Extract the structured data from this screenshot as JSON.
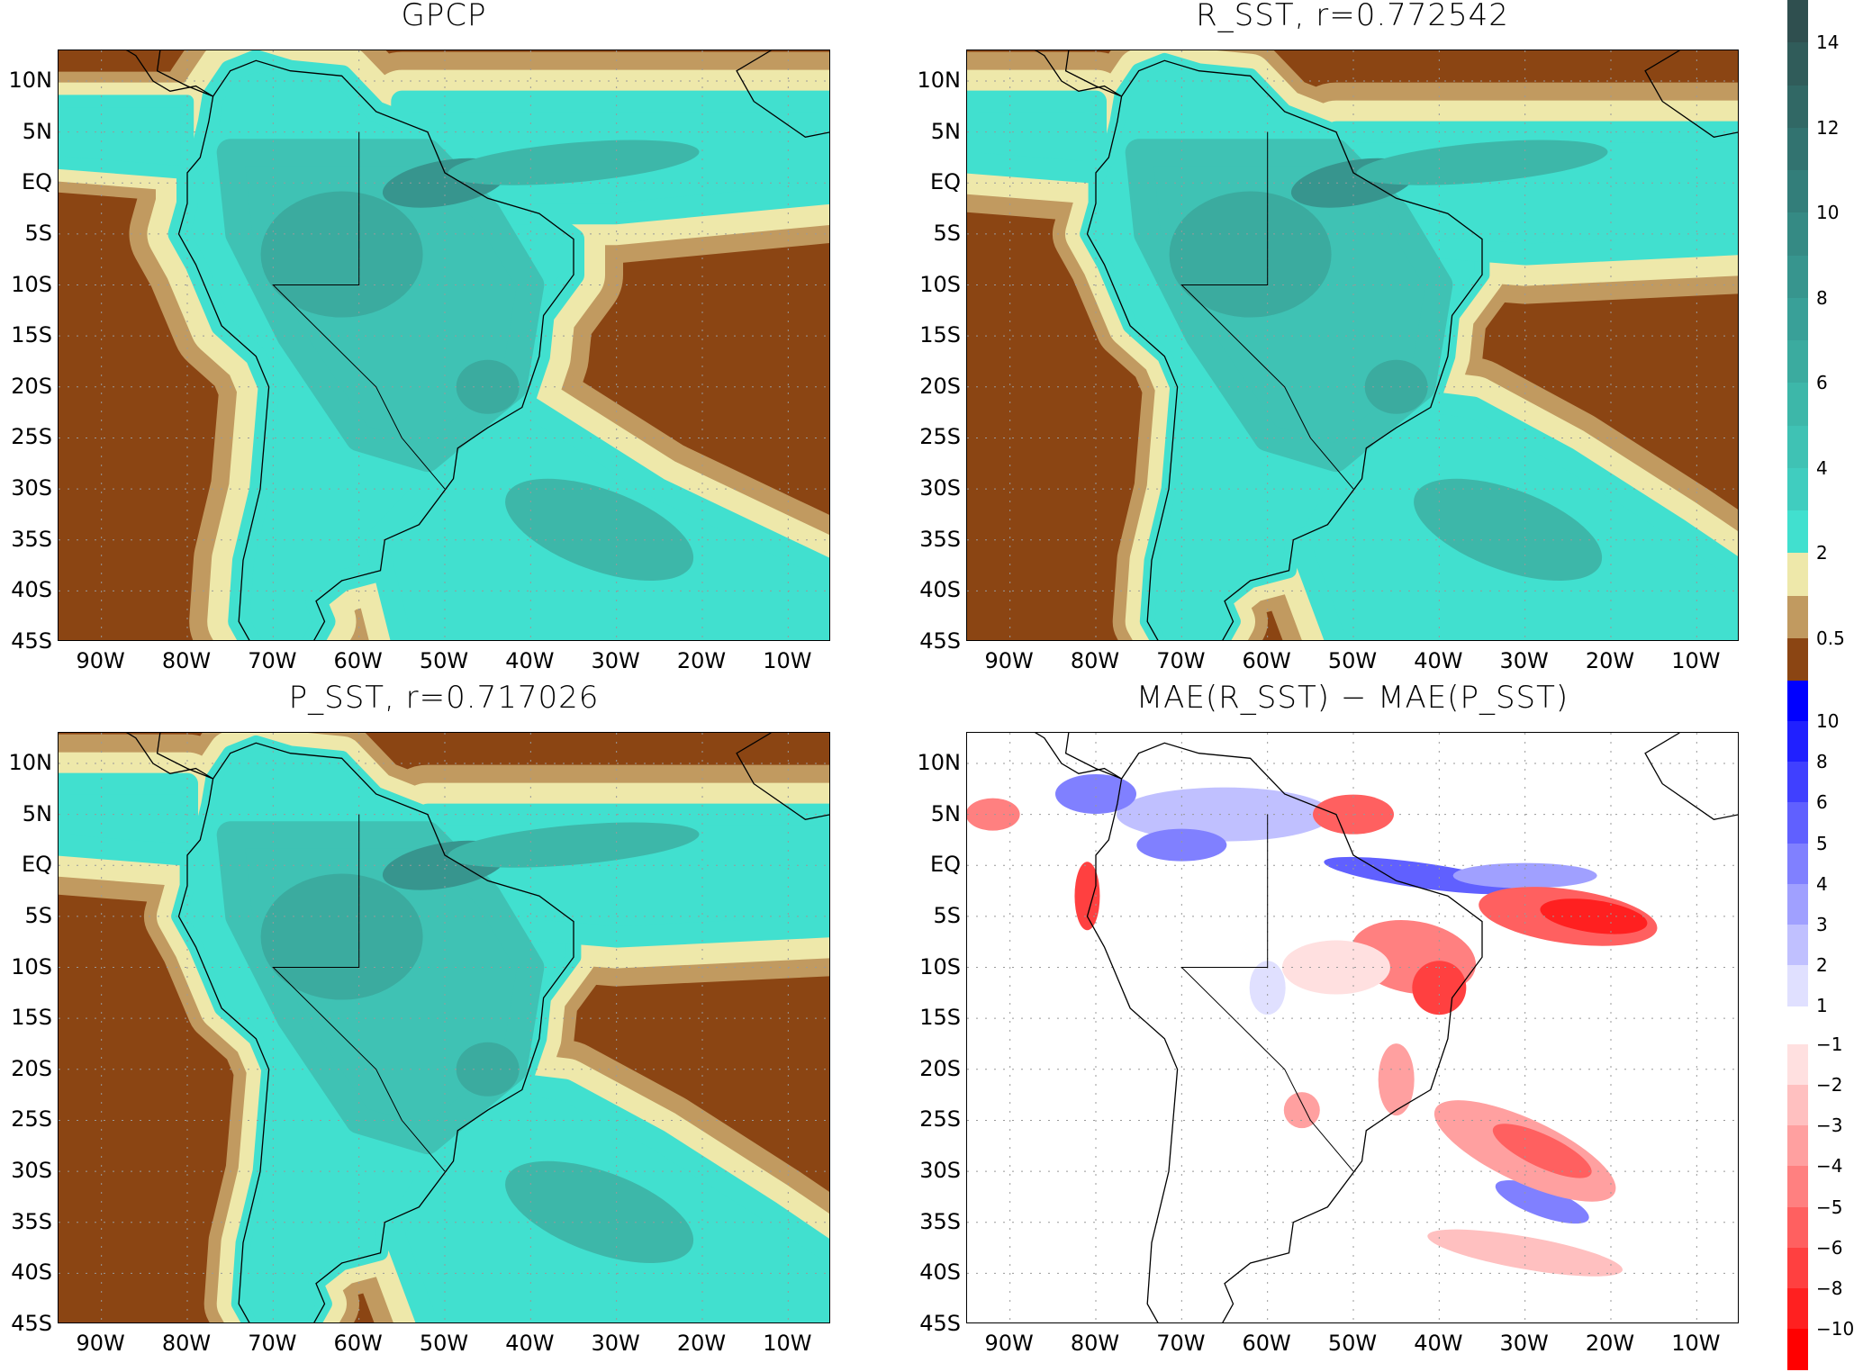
{
  "panels": [
    {
      "id": "gpcp",
      "title": "GPCP"
    },
    {
      "id": "r_sst",
      "title": "R_SST,  r=0.772542"
    },
    {
      "id": "p_sst",
      "title": "P_SST,  r=0.717026"
    },
    {
      "id": "mae_diff",
      "title": "MAE(R_SST) − MAE(P_SST)"
    }
  ],
  "axes": {
    "lon_range": [
      "95W",
      "5W"
    ],
    "lat_range": [
      "45S",
      "13N"
    ],
    "x_ticks": [
      "90W",
      "80W",
      "70W",
      "60W",
      "50W",
      "40W",
      "30W",
      "20W",
      "10W"
    ],
    "y_ticks": [
      "10N",
      "5N",
      "EQ",
      "5S",
      "10S",
      "15S",
      "20S",
      "25S",
      "30S",
      "35S",
      "40S",
      "45S"
    ],
    "grid": "dotted"
  },
  "colorbar_precip": {
    "labels": [
      "14",
      "12",
      "10",
      "8",
      "6",
      "4",
      "2",
      "0.5"
    ],
    "colors": [
      "#2f4f4f",
      "#305c5a",
      "#316865",
      "#327370",
      "#337e7a",
      "#358a84",
      "#37958e",
      "#39a098",
      "#3bab9f",
      "#3db7a9",
      "#3fc2b4",
      "#40cdbf",
      "#41e0cf",
      "#eee8aa",
      "#c19a60",
      "#8b4513"
    ]
  },
  "colorbar_diff": {
    "labels": [
      "10",
      "8",
      "6",
      "5",
      "4",
      "3",
      "2",
      "1",
      "−1",
      "−2",
      "−3",
      "−4",
      "−5",
      "−6",
      "−8",
      "−10"
    ],
    "colors_positive": [
      "#0000ff",
      "#2020ff",
      "#4040ff",
      "#6060ff",
      "#8080ff",
      "#a0a0ff",
      "#c0c0ff",
      "#e0e0ff"
    ],
    "colors_negative": [
      "#ffe0e0",
      "#ffc0c0",
      "#ffa0a0",
      "#ff8080",
      "#ff6060",
      "#ff4040",
      "#ff2020",
      "#ff0000"
    ]
  }
}
